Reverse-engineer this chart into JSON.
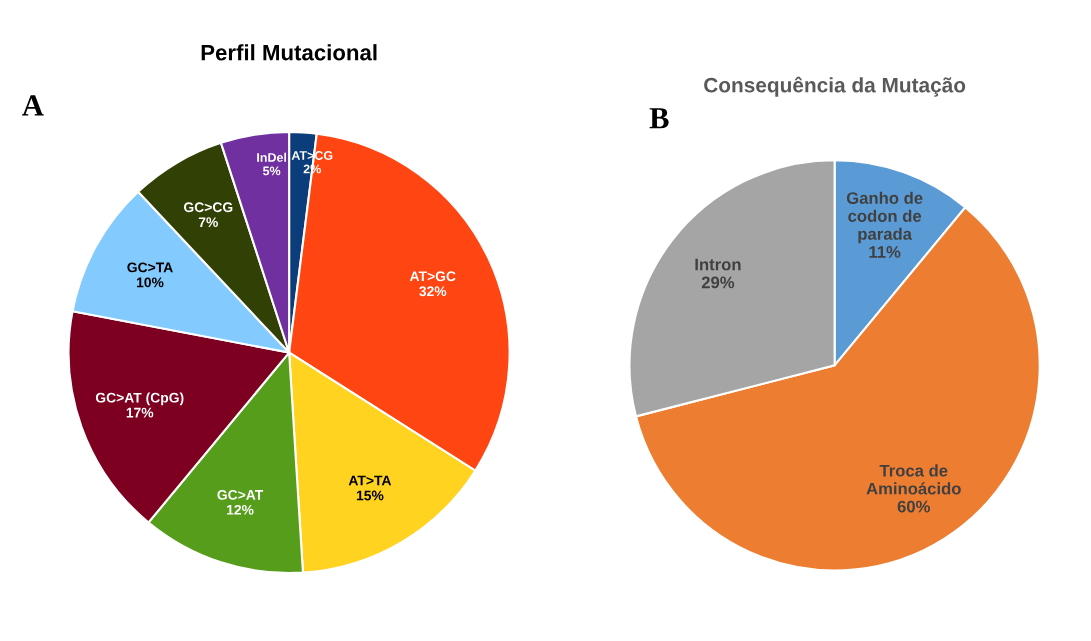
{
  "chart_data": [
    {
      "type": "pie",
      "title": "Perfil Mutacional",
      "annotations": [
        "A"
      ],
      "categories": [
        "AT>CG",
        "AT>GC",
        "AT>TA",
        "GC>AT",
        "GC>AT (CpG)",
        "GC>TA",
        "GC>CG",
        "InDel"
      ],
      "values": [
        2,
        32,
        15,
        12,
        17,
        10,
        7,
        5
      ],
      "value_labels": [
        "2%",
        "32%",
        "15%",
        "12%",
        "17%",
        "10%",
        "7%",
        "5%"
      ],
      "colors": [
        "#0a3d7a",
        "#ff4511",
        "#ffd320",
        "#579d1c",
        "#7e0021",
        "#83caff",
        "#314004",
        "#7030a0"
      ]
    },
    {
      "type": "pie",
      "title": "Consequência da Mutação",
      "annotations": [
        "B"
      ],
      "categories": [
        "Ganho de\ncodon de\nparada",
        "Troca de\nAminoácido",
        "Intron"
      ],
      "values": [
        11,
        60,
        29
      ],
      "value_labels": [
        "11%",
        "60%",
        "29%"
      ],
      "colors": [
        "#5b9bd5",
        "#ed7d31",
        "#a5a5a5"
      ]
    }
  ]
}
